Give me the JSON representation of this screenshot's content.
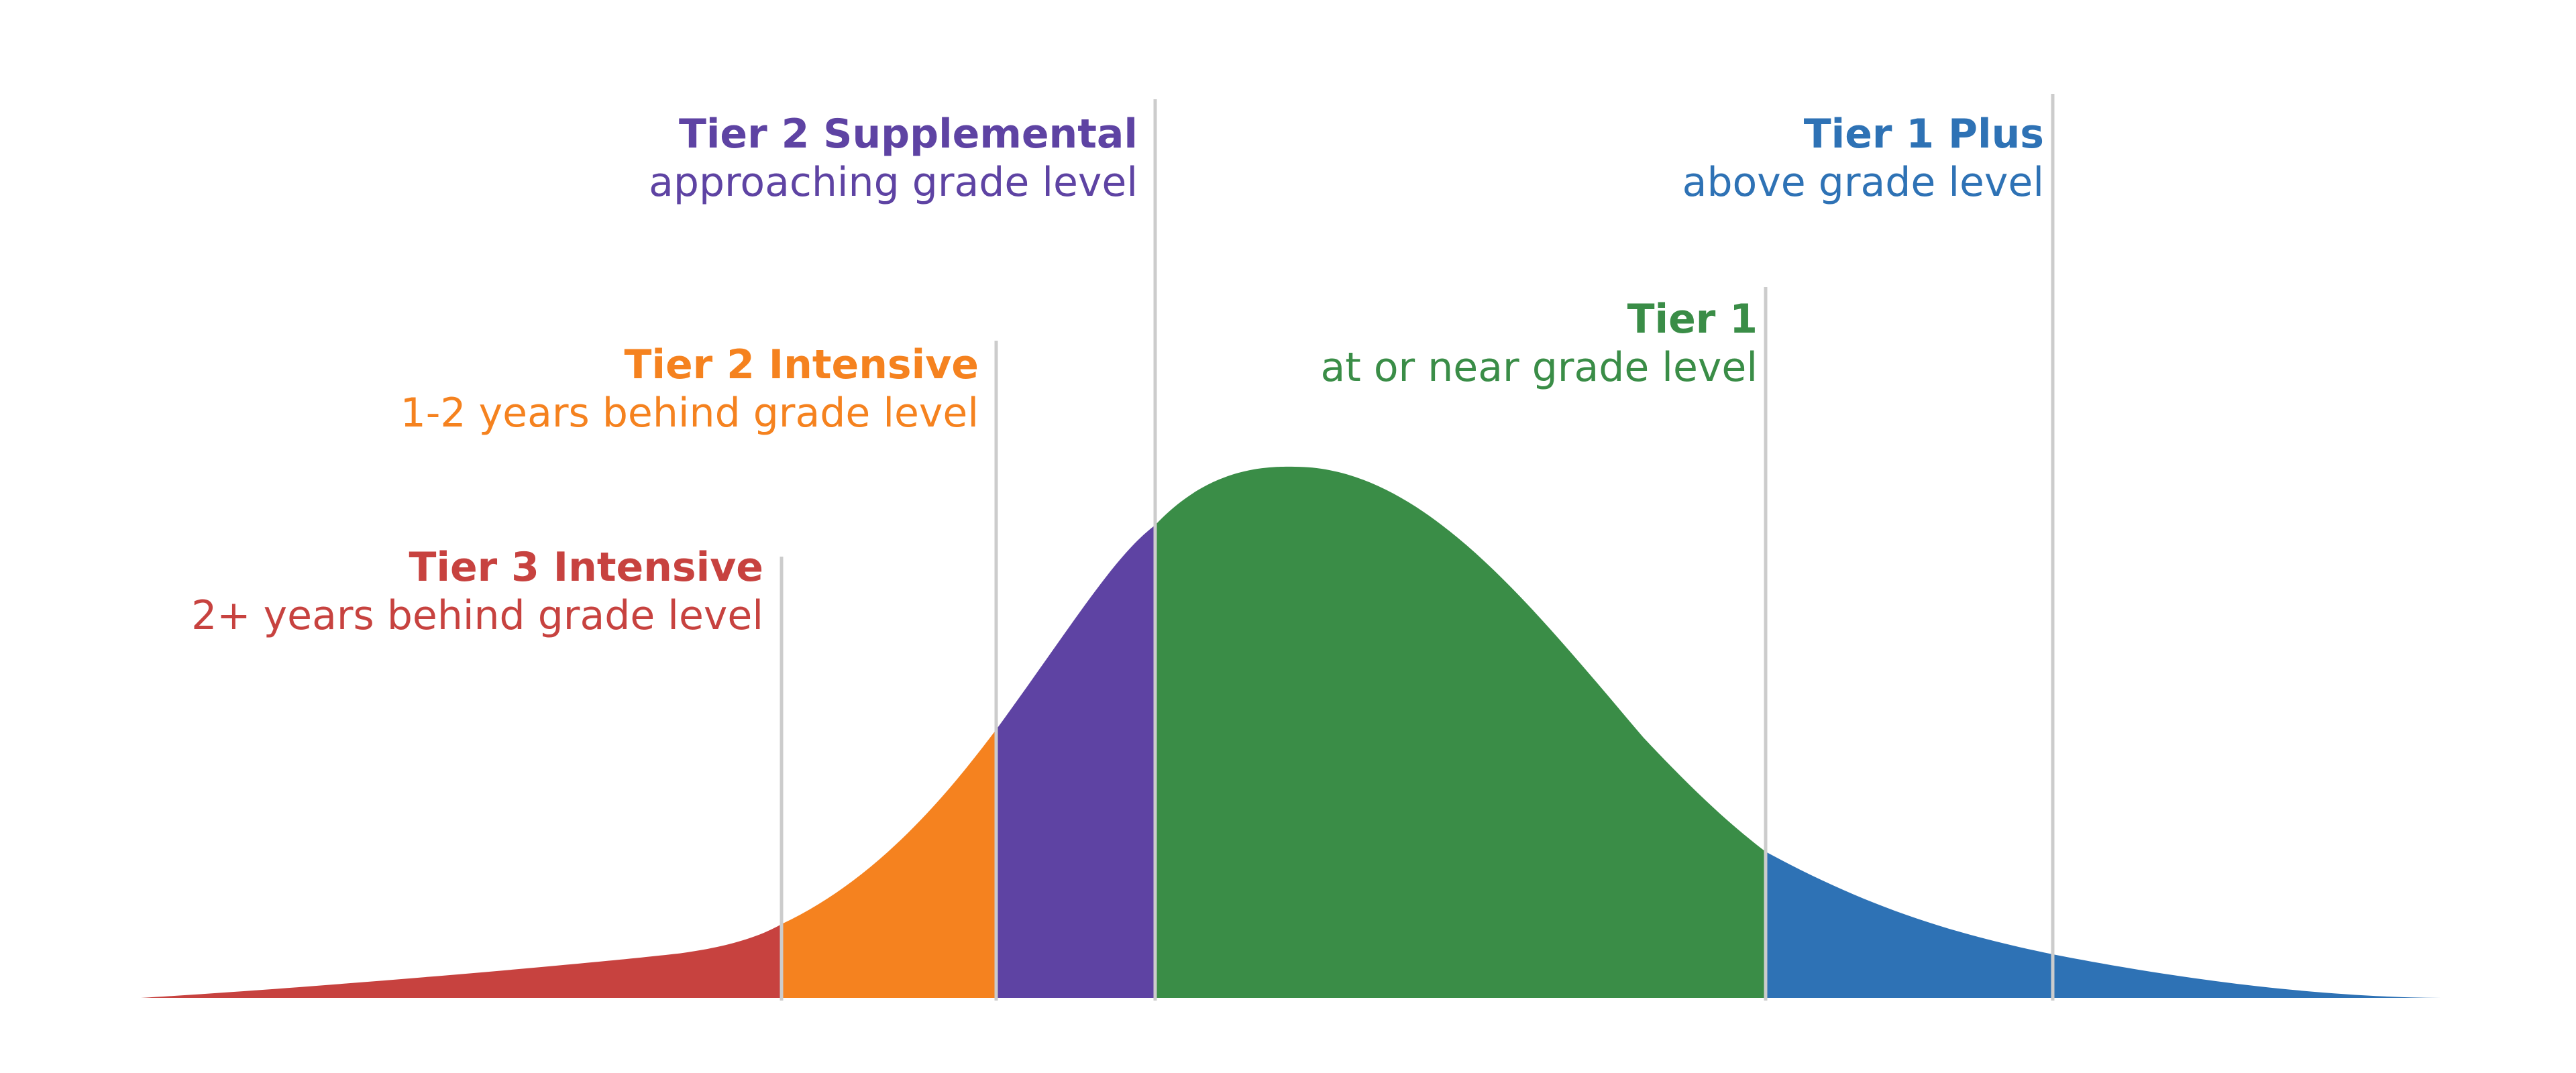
{
  "tiers": [
    {
      "key": "tier3",
      "title": "Tier 3 Intensive",
      "description": "2+ years behind grade level",
      "color": "#c7423f"
    },
    {
      "key": "tier2_intensive",
      "title": "Tier 2 Intensive",
      "description": "1-2 years behind grade level",
      "color": "#f5821f"
    },
    {
      "key": "tier2_supplemental",
      "title": "Tier 2 Supplemental",
      "description": "approaching grade level",
      "color": "#5e43a3"
    },
    {
      "key": "tier1",
      "title": "Tier 1",
      "description": "at or near grade level",
      "color": "#3a8d47"
    },
    {
      "key": "tier1_plus",
      "title": "Tier 1 Plus",
      "description": "above grade level",
      "color": "#2e72b5"
    }
  ],
  "divider_color": "#cccccc"
}
